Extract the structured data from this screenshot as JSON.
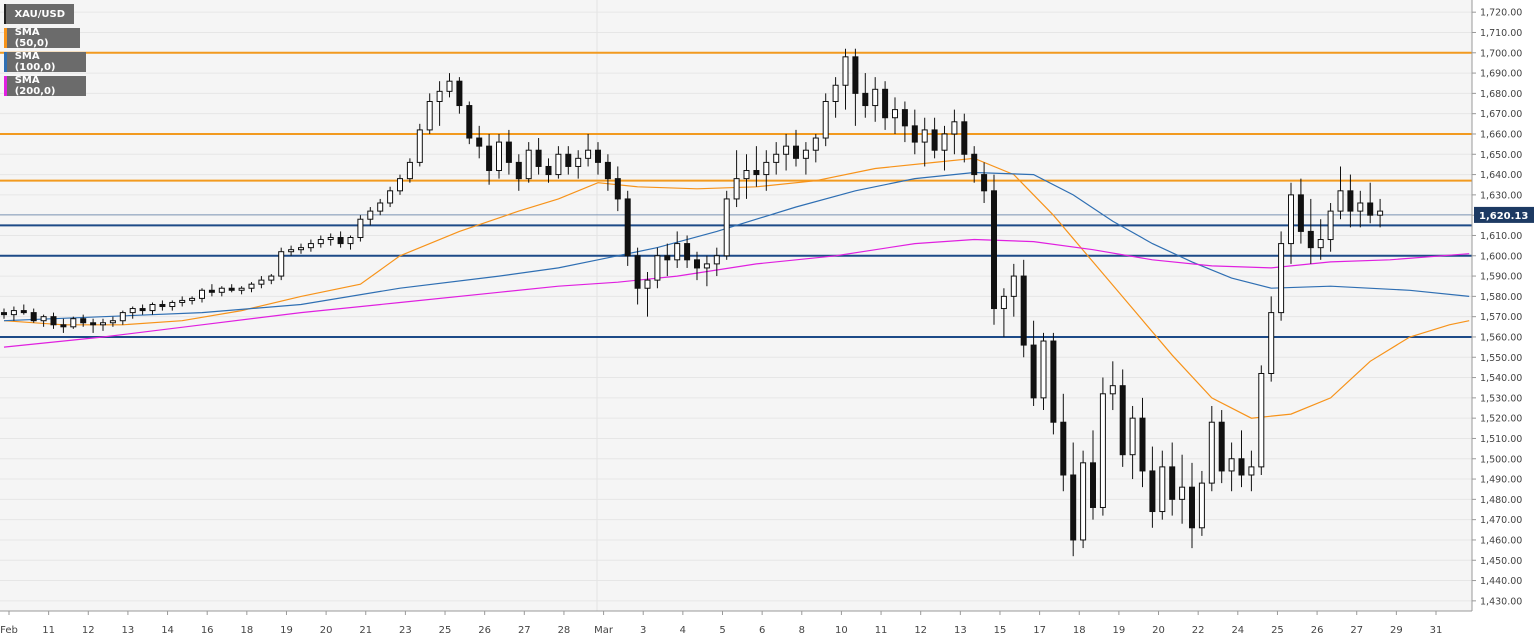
{
  "chart_data": {
    "type": "candlestick",
    "symbol": "XAU/USD",
    "y_range": [
      1425,
      1726
    ],
    "y_ticks": [
      1430,
      1440,
      1450,
      1460,
      1470,
      1480,
      1490,
      1500,
      1510,
      1520,
      1530,
      1540,
      1550,
      1560,
      1570,
      1580,
      1590,
      1600,
      1610,
      1620,
      1630,
      1640,
      1650,
      1660,
      1670,
      1680,
      1690,
      1700,
      1710,
      1720
    ],
    "y_tick_labels": [
      "1,430.00",
      "1,440.00",
      "1,450.00",
      "1,460.00",
      "1,470.00",
      "1,480.00",
      "1,490.00",
      "1,500.00",
      "1,510.00",
      "1,520.00",
      "1,530.00",
      "1,540.00",
      "1,550.00",
      "1,560.00",
      "1,570.00",
      "1,580.00",
      "1,590.00",
      "1,600.00",
      "1,610.00",
      "1,620.00",
      "1,630.00",
      "1,640.00",
      "1,650.00",
      "1,660.00",
      "1,670.00",
      "1,680.00",
      "1,690.00",
      "1,700.00",
      "1,710.00",
      "1,720.00"
    ],
    "x_labels": [
      "Feb",
      "11",
      "12",
      "13",
      "14",
      "16",
      "18",
      "19",
      "20",
      "21",
      "23",
      "25",
      "26",
      "27",
      "28",
      "Mar",
      "3",
      "4",
      "5",
      "6",
      "8",
      "10",
      "11",
      "12",
      "13",
      "15",
      "17",
      "18",
      "19",
      "20",
      "22",
      "24",
      "25",
      "26",
      "27",
      "29",
      "31"
    ],
    "last_price": 1620.13,
    "last_price_label": "1,620.13",
    "resistance_levels": [
      1700,
      1660,
      1637
    ],
    "support_levels": [
      1615,
      1600,
      1560
    ],
    "legend": [
      {
        "label": "XAU/USD",
        "color": "#222222"
      },
      {
        "label": "SMA (50,0)",
        "color": "#f7931a"
      },
      {
        "label": "SMA (100,0)",
        "color": "#2f6fb3"
      },
      {
        "label": "SMA (200,0)",
        "color": "#e020e0"
      }
    ],
    "candles": [
      [
        1572,
        1574,
        1569,
        1571
      ],
      [
        1571,
        1575,
        1568,
        1573
      ],
      [
        1573,
        1576,
        1571,
        1572
      ],
      [
        1572,
        1574,
        1567,
        1568
      ],
      [
        1568,
        1571,
        1565,
        1570
      ],
      [
        1570,
        1572,
        1564,
        1566
      ],
      [
        1566,
        1569,
        1562,
        1565
      ],
      [
        1565,
        1570,
        1564,
        1569
      ],
      [
        1569,
        1571,
        1565,
        1567
      ],
      [
        1567,
        1569,
        1562,
        1566
      ],
      [
        1566,
        1569,
        1563,
        1567
      ],
      [
        1567,
        1570,
        1565,
        1568
      ],
      [
        1568,
        1573,
        1566,
        1572
      ],
      [
        1572,
        1575,
        1569,
        1574
      ],
      [
        1574,
        1576,
        1571,
        1573
      ],
      [
        1573,
        1577,
        1571,
        1576
      ],
      [
        1576,
        1578,
        1573,
        1575
      ],
      [
        1575,
        1578,
        1573,
        1577
      ],
      [
        1577,
        1580,
        1575,
        1578
      ],
      [
        1578,
        1580,
        1576,
        1579
      ],
      [
        1579,
        1584,
        1577,
        1583
      ],
      [
        1583,
        1586,
        1580,
        1582
      ],
      [
        1582,
        1585,
        1580,
        1584
      ],
      [
        1584,
        1586,
        1582,
        1583
      ],
      [
        1583,
        1585,
        1581,
        1584
      ],
      [
        1584,
        1587,
        1582,
        1586
      ],
      [
        1586,
        1590,
        1584,
        1588
      ],
      [
        1588,
        1591,
        1586,
        1590
      ],
      [
        1590,
        1604,
        1588,
        1602
      ],
      [
        1602,
        1605,
        1600,
        1603
      ],
      [
        1603,
        1606,
        1601,
        1604
      ],
      [
        1604,
        1608,
        1602,
        1606
      ],
      [
        1606,
        1610,
        1604,
        1608
      ],
      [
        1608,
        1611,
        1605,
        1609
      ],
      [
        1609,
        1612,
        1604,
        1606
      ],
      [
        1606,
        1610,
        1603,
        1609
      ],
      [
        1609,
        1620,
        1607,
        1618
      ],
      [
        1618,
        1624,
        1615,
        1622
      ],
      [
        1622,
        1628,
        1620,
        1626
      ],
      [
        1626,
        1634,
        1624,
        1632
      ],
      [
        1632,
        1640,
        1630,
        1638
      ],
      [
        1638,
        1648,
        1636,
        1646
      ],
      [
        1646,
        1665,
        1644,
        1662
      ],
      [
        1662,
        1680,
        1660,
        1676
      ],
      [
        1676,
        1686,
        1664,
        1681
      ],
      [
        1681,
        1690,
        1678,
        1686
      ],
      [
        1686,
        1688,
        1670,
        1674
      ],
      [
        1674,
        1676,
        1655,
        1658
      ],
      [
        1658,
        1664,
        1648,
        1654
      ],
      [
        1654,
        1660,
        1635,
        1642
      ],
      [
        1642,
        1660,
        1638,
        1656
      ],
      [
        1656,
        1662,
        1640,
        1646
      ],
      [
        1646,
        1650,
        1632,
        1638
      ],
      [
        1638,
        1656,
        1636,
        1652
      ],
      [
        1652,
        1658,
        1640,
        1644
      ],
      [
        1644,
        1648,
        1636,
        1640
      ],
      [
        1640,
        1654,
        1638,
        1650
      ],
      [
        1650,
        1654,
        1640,
        1644
      ],
      [
        1644,
        1652,
        1638,
        1648
      ],
      [
        1648,
        1660,
        1644,
        1652
      ],
      [
        1652,
        1656,
        1640,
        1646
      ],
      [
        1646,
        1650,
        1632,
        1638
      ],
      [
        1638,
        1644,
        1622,
        1628
      ],
      [
        1628,
        1632,
        1595,
        1600
      ],
      [
        1600,
        1604,
        1576,
        1584
      ],
      [
        1584,
        1592,
        1570,
        1588
      ],
      [
        1588,
        1604,
        1584,
        1600
      ],
      [
        1600,
        1606,
        1590,
        1598
      ],
      [
        1598,
        1612,
        1594,
        1606
      ],
      [
        1606,
        1610,
        1594,
        1598
      ],
      [
        1598,
        1602,
        1588,
        1594
      ],
      [
        1594,
        1600,
        1585,
        1596
      ],
      [
        1596,
        1604,
        1590,
        1600
      ],
      [
        1600,
        1632,
        1598,
        1628
      ],
      [
        1628,
        1652,
        1624,
        1638
      ],
      [
        1638,
        1650,
        1628,
        1642
      ],
      [
        1642,
        1654,
        1634,
        1640
      ],
      [
        1640,
        1652,
        1632,
        1646
      ],
      [
        1646,
        1656,
        1640,
        1650
      ],
      [
        1650,
        1660,
        1642,
        1654
      ],
      [
        1654,
        1662,
        1644,
        1648
      ],
      [
        1648,
        1656,
        1640,
        1652
      ],
      [
        1652,
        1660,
        1646,
        1658
      ],
      [
        1658,
        1680,
        1654,
        1676
      ],
      [
        1676,
        1688,
        1668,
        1684
      ],
      [
        1684,
        1702,
        1672,
        1698
      ],
      [
        1698,
        1702,
        1664,
        1680
      ],
      [
        1680,
        1690,
        1668,
        1674
      ],
      [
        1674,
        1688,
        1666,
        1682
      ],
      [
        1682,
        1686,
        1662,
        1668
      ],
      [
        1668,
        1678,
        1660,
        1672
      ],
      [
        1672,
        1676,
        1656,
        1664
      ],
      [
        1664,
        1672,
        1650,
        1656
      ],
      [
        1656,
        1668,
        1644,
        1662
      ],
      [
        1662,
        1668,
        1648,
        1652
      ],
      [
        1652,
        1664,
        1642,
        1660
      ],
      [
        1660,
        1672,
        1650,
        1666
      ],
      [
        1666,
        1670,
        1646,
        1650
      ],
      [
        1650,
        1654,
        1636,
        1640
      ],
      [
        1640,
        1646,
        1626,
        1632
      ],
      [
        1632,
        1640,
        1566,
        1574
      ],
      [
        1574,
        1584,
        1560,
        1580
      ],
      [
        1580,
        1596,
        1570,
        1590
      ],
      [
        1590,
        1598,
        1550,
        1556
      ],
      [
        1556,
        1568,
        1526,
        1530
      ],
      [
        1530,
        1562,
        1524,
        1558
      ],
      [
        1558,
        1562,
        1512,
        1518
      ],
      [
        1518,
        1532,
        1484,
        1492
      ],
      [
        1492,
        1508,
        1452,
        1460
      ],
      [
        1460,
        1504,
        1456,
        1498
      ],
      [
        1498,
        1514,
        1470,
        1476
      ],
      [
        1476,
        1540,
        1472,
        1532
      ],
      [
        1532,
        1548,
        1524,
        1536
      ],
      [
        1536,
        1544,
        1496,
        1502
      ],
      [
        1502,
        1526,
        1490,
        1520
      ],
      [
        1520,
        1530,
        1486,
        1494
      ],
      [
        1494,
        1506,
        1466,
        1474
      ],
      [
        1474,
        1504,
        1470,
        1496
      ],
      [
        1496,
        1508,
        1472,
        1480
      ],
      [
        1480,
        1502,
        1468,
        1486
      ],
      [
        1486,
        1498,
        1456,
        1466
      ],
      [
        1466,
        1494,
        1462,
        1488
      ],
      [
        1488,
        1526,
        1484,
        1518
      ],
      [
        1518,
        1524,
        1488,
        1494
      ],
      [
        1494,
        1508,
        1484,
        1500
      ],
      [
        1500,
        1514,
        1486,
        1492
      ],
      [
        1492,
        1504,
        1484,
        1496
      ],
      [
        1496,
        1546,
        1492,
        1542
      ],
      [
        1542,
        1580,
        1538,
        1572
      ],
      [
        1572,
        1612,
        1568,
        1606
      ],
      [
        1606,
        1636,
        1596,
        1630
      ],
      [
        1630,
        1638,
        1606,
        1612
      ],
      [
        1612,
        1628,
        1596,
        1604
      ],
      [
        1604,
        1618,
        1598,
        1608
      ],
      [
        1608,
        1626,
        1602,
        1622
      ],
      [
        1622,
        1644,
        1618,
        1632
      ],
      [
        1632,
        1640,
        1614,
        1622
      ],
      [
        1622,
        1632,
        1614,
        1626
      ],
      [
        1626,
        1636,
        1616,
        1620
      ],
      [
        1620,
        1628,
        1614,
        1622
      ]
    ],
    "sma": [
      {
        "name": "SMA (50,0)",
        "color": "#f7931a",
        "points": [
          [
            0,
            1568
          ],
          [
            6,
            1566
          ],
          [
            12,
            1566
          ],
          [
            18,
            1568
          ],
          [
            24,
            1573
          ],
          [
            30,
            1580
          ],
          [
            36,
            1586
          ],
          [
            40,
            1600
          ],
          [
            46,
            1612
          ],
          [
            52,
            1622
          ],
          [
            56,
            1628
          ],
          [
            60,
            1636
          ],
          [
            64,
            1634
          ],
          [
            70,
            1633
          ],
          [
            76,
            1634
          ],
          [
            82,
            1637
          ],
          [
            88,
            1643
          ],
          [
            94,
            1646
          ],
          [
            98,
            1648
          ],
          [
            102,
            1640
          ],
          [
            106,
            1620
          ],
          [
            110,
            1597
          ],
          [
            114,
            1574
          ],
          [
            118,
            1551
          ],
          [
            122,
            1530
          ],
          [
            126,
            1520
          ],
          [
            130,
            1522
          ],
          [
            134,
            1530
          ],
          [
            138,
            1548
          ],
          [
            142,
            1560
          ],
          [
            146,
            1566
          ],
          [
            148,
            1568
          ]
        ]
      },
      {
        "name": "SMA (100,0)",
        "color": "#2f6fb3",
        "points": [
          [
            0,
            1568
          ],
          [
            10,
            1570
          ],
          [
            20,
            1572
          ],
          [
            30,
            1576
          ],
          [
            40,
            1584
          ],
          [
            50,
            1590
          ],
          [
            56,
            1594
          ],
          [
            60,
            1598
          ],
          [
            66,
            1604
          ],
          [
            72,
            1612
          ],
          [
            80,
            1624
          ],
          [
            86,
            1632
          ],
          [
            92,
            1638
          ],
          [
            98,
            1641
          ],
          [
            104,
            1640
          ],
          [
            108,
            1630
          ],
          [
            112,
            1617
          ],
          [
            116,
            1606
          ],
          [
            120,
            1597
          ],
          [
            124,
            1589
          ],
          [
            128,
            1584
          ],
          [
            134,
            1585
          ],
          [
            142,
            1583
          ],
          [
            148,
            1580
          ]
        ]
      },
      {
        "name": "SMA (200,0)",
        "color": "#e020e0",
        "points": [
          [
            0,
            1555
          ],
          [
            10,
            1560
          ],
          [
            20,
            1566
          ],
          [
            30,
            1572
          ],
          [
            40,
            1577
          ],
          [
            50,
            1582
          ],
          [
            56,
            1585
          ],
          [
            62,
            1587
          ],
          [
            68,
            1590
          ],
          [
            76,
            1596
          ],
          [
            84,
            1600
          ],
          [
            92,
            1606
          ],
          [
            98,
            1608
          ],
          [
            104,
            1607
          ],
          [
            110,
            1603
          ],
          [
            116,
            1598
          ],
          [
            122,
            1595
          ],
          [
            128,
            1594
          ],
          [
            134,
            1597
          ],
          [
            140,
            1598
          ],
          [
            148,
            1601
          ]
        ]
      }
    ]
  }
}
